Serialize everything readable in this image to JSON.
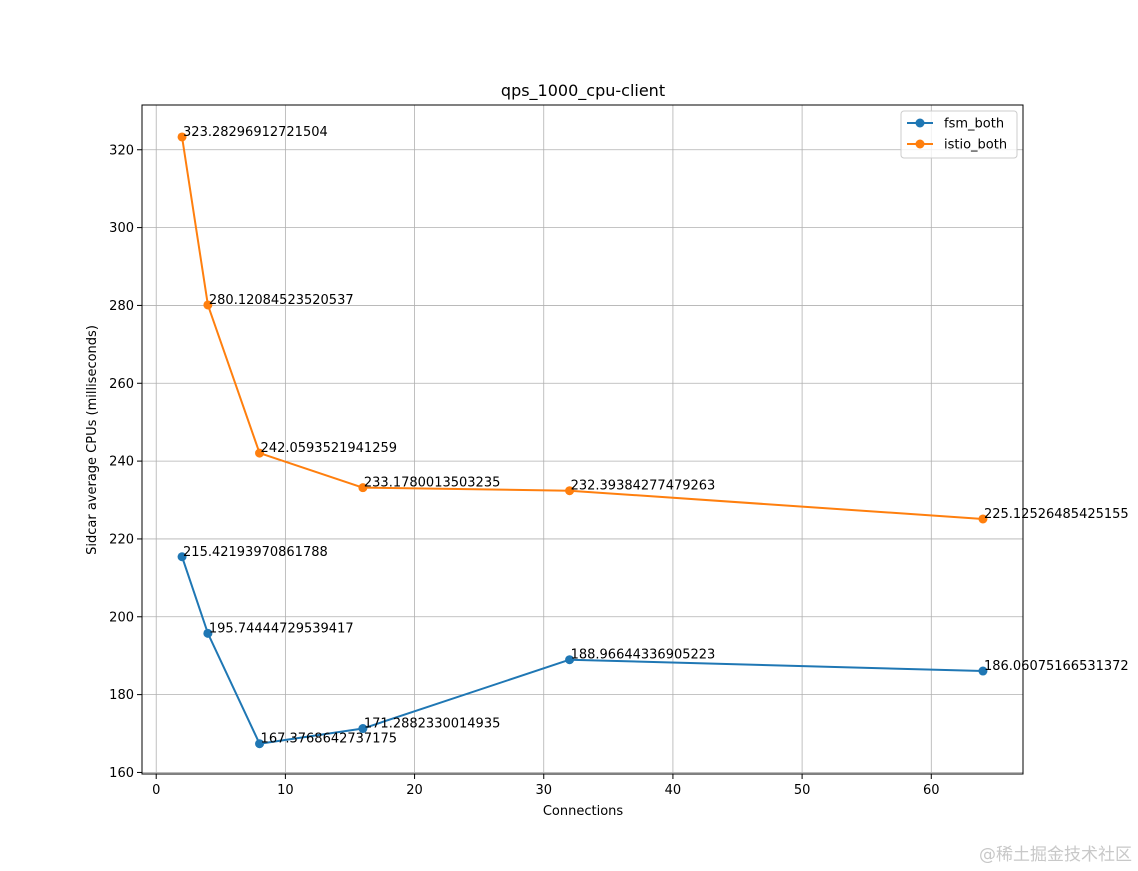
{
  "chart_data": {
    "type": "line",
    "title": "qps_1000_cpu-client",
    "xlabel": "Connections",
    "ylabel": "Sidcar average CPUs (milliseconds)",
    "xlim": [
      -1.1,
      67.1
    ],
    "ylim": [
      159.6,
      331.5
    ],
    "xticks": [
      0,
      10,
      20,
      30,
      40,
      50,
      60
    ],
    "yticks": [
      160,
      180,
      200,
      220,
      240,
      260,
      280,
      300,
      320
    ],
    "grid": true,
    "legend_position": "top-right",
    "x": [
      2,
      4,
      8,
      16,
      32,
      64
    ],
    "series": [
      {
        "name": "fsm_both",
        "color": "#1f77b4",
        "values": [
          215.42193970861788,
          195.74444729539417,
          167.3768642737175,
          171.2882330014935,
          188.96644336905223,
          186.06075166531372
        ],
        "labels": [
          "215.42193970861788",
          "195.74444729539417",
          "167.3768642737175",
          "171.2882330014935",
          "188.96644336905223",
          "186.06075166531372"
        ]
      },
      {
        "name": "istio_both",
        "color": "#ff7f0e",
        "values": [
          323.28296912721504,
          280.12084523520537,
          242.0593521941259,
          233.1780013503235,
          232.39384277479263,
          225.12526485425155
        ],
        "labels": [
          "323.28296912721504",
          "280.12084523520537",
          "242.0593521941259",
          "233.1780013503235",
          "232.39384277479263",
          "225.12526485425155"
        ]
      }
    ]
  },
  "watermark": "@稀土掘金技术社区"
}
